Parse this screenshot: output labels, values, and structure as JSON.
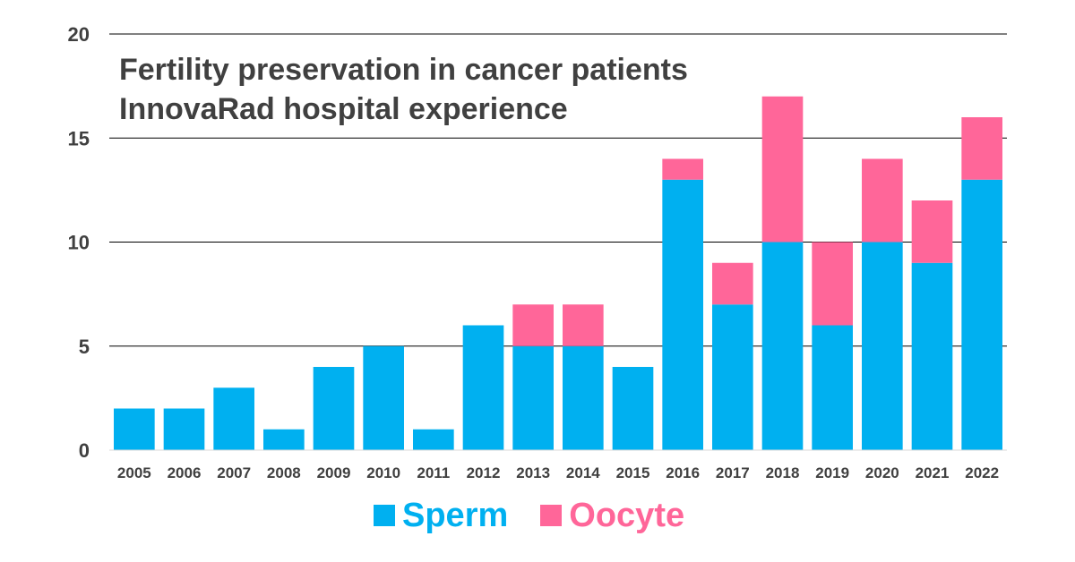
{
  "chart_data": {
    "type": "bar",
    "stacked": true,
    "title_lines": [
      "Fertility preservation in cancer patients",
      "InnovaRad hospital experience"
    ],
    "categories": [
      "2005",
      "2006",
      "2007",
      "2008",
      "2009",
      "2010",
      "2011",
      "2012",
      "2013",
      "2014",
      "2015",
      "2016",
      "2017",
      "2018",
      "2019",
      "2020",
      "2021",
      "2022"
    ],
    "series": [
      {
        "name": "Sperm",
        "color": "#00B0F0",
        "values": [
          2,
          2,
          3,
          1,
          4,
          5,
          1,
          6,
          5,
          5,
          4,
          13,
          7,
          10,
          6,
          10,
          9,
          13
        ]
      },
      {
        "name": "Oocyte",
        "color": "#FF6699",
        "values": [
          0,
          0,
          0,
          0,
          0,
          0,
          0,
          0,
          2,
          2,
          0,
          1,
          2,
          7,
          4,
          4,
          3,
          3
        ]
      }
    ],
    "ylim": [
      0,
      20
    ],
    "yticks": [
      "0",
      "5",
      "10",
      "15",
      "20"
    ],
    "grid": true,
    "legend_position": "bottom"
  }
}
